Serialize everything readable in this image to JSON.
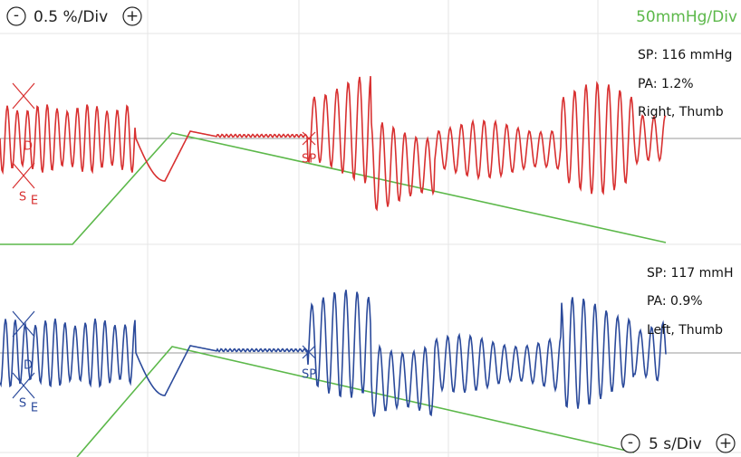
{
  "scale_controls": {
    "amplitude": {
      "minus": "-",
      "label": "0.5 %/Div",
      "plus": "+"
    },
    "pressure": "50mmHg/Div",
    "time": {
      "minus": "-",
      "label": "5 s/Div",
      "plus": "+"
    }
  },
  "channels": [
    {
      "sp": "SP: 116 mmHg",
      "pa": "PA:  1.2%",
      "site": "Right, Thumb",
      "sp_marker": "SP",
      "markers": [
        "S",
        "E",
        "D"
      ]
    },
    {
      "sp": "SP: 117 mmH",
      "pa": "PA:  0.9%",
      "site": "Left, Thumb",
      "sp_marker": "SP",
      "markers": [
        "S",
        "E",
        "D"
      ]
    }
  ]
}
